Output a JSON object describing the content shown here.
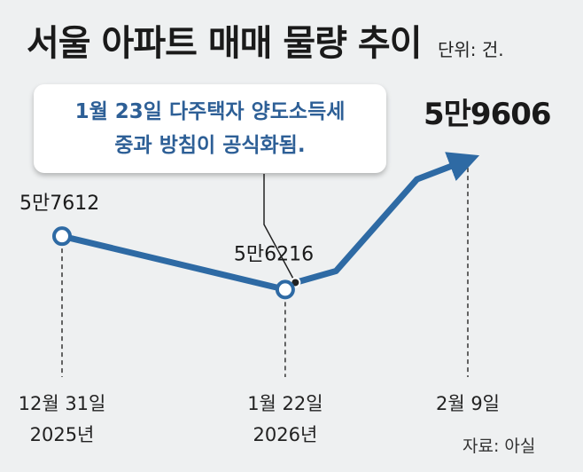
{
  "title": "서울 아파트 매매 물량 추이",
  "unit": "단위: 건.",
  "annotation": {
    "line1": "1월 23일 다주택자 양도소득세",
    "line2": "중과 방침이 공식화됨."
  },
  "source": "자료: 아실",
  "colors": {
    "line": "#2e6aa4",
    "callout_text": "#2d5f96",
    "background": "#eef0f1"
  },
  "chart_data": {
    "type": "line",
    "title": "서울 아파트 매매 물량 추이",
    "unit": "건",
    "labeled_points": [
      {
        "date": "2025-12-31",
        "value": 57612,
        "value_label": "5만7612",
        "x_label": [
          "12월 31일",
          "2025년"
        ]
      },
      {
        "date": "2026-01-22",
        "value": 56216,
        "value_label": "5만6216",
        "x_label": [
          "1월 22일",
          "2026년"
        ]
      },
      {
        "date": "2026-02-09",
        "value": 59606,
        "value_label": "5만9606",
        "x_label": [
          "2월 9일"
        ]
      }
    ],
    "series": [
      {
        "points": [
          {
            "date": "2025-12-31",
            "value": 57612
          },
          {
            "date": "2026-01-22",
            "value": 56216
          },
          {
            "date": "2026-01-23",
            "value": 56400
          },
          {
            "date": "2026-01-27",
            "value": 56700
          },
          {
            "date": "2026-02-04",
            "value": 59100
          },
          {
            "date": "2026-02-09",
            "value": 59606
          }
        ]
      }
    ],
    "annotation_date": "2026-01-23",
    "ylim": [
      54000,
      61000
    ]
  }
}
